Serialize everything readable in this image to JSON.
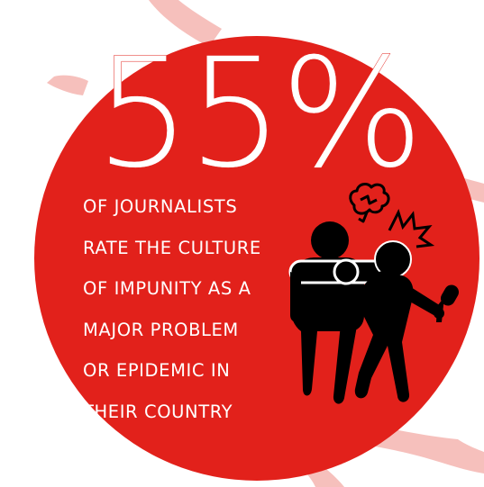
{
  "stat": {
    "value": "55%"
  },
  "caption": {
    "lines": [
      "OF JOURNALISTS",
      "RATE THE CULTURE",
      "OF IMPUNITY AS A",
      "MAJOR PROBLEM",
      "OR EPIDEMIC IN",
      "THEIR COUNTRY"
    ]
  },
  "colors": {
    "circle": "#e2211b",
    "text": "#ffffff",
    "accent_shapes": "#f4b5b0",
    "figures": "#000000",
    "background": "#ffffff"
  },
  "icons": {
    "illustration": "journalist-assault-icon",
    "anger": "anger-cloud-icon",
    "impact": "impact-burst-icon",
    "microphone": "microphone-icon"
  }
}
